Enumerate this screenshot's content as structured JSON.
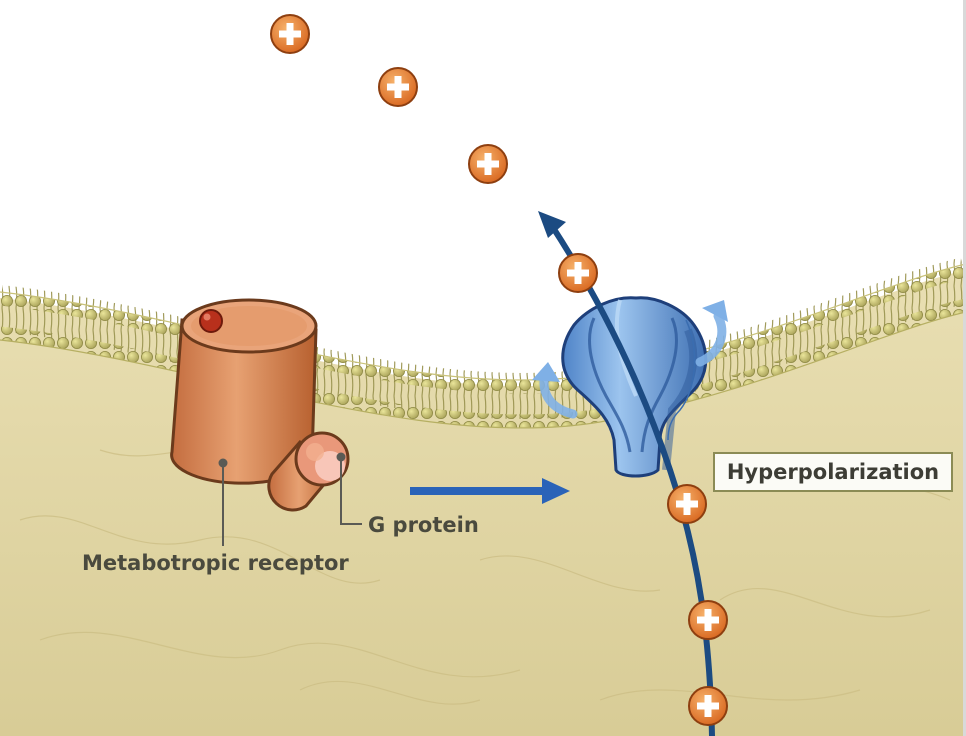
{
  "labels": {
    "receptor": "Metabotropic receptor",
    "g_protein": "G protein",
    "hyperpolarization": "Hyperpolarization"
  },
  "icons": {
    "ion": "positive-ion-icon",
    "flow_arrow": "arrow-right-icon",
    "ion_path": "curved-arrow-icon",
    "channel": "ion-channel-icon"
  },
  "colors": {
    "cytoplasm": "#e2d7a7",
    "membrane": "#c2bd72",
    "receptor": "#de8c5a",
    "channel": "#6a9fd8",
    "ion": "#e07a2a",
    "arrow": "#2a63b8",
    "ion_path": "#1c4b82"
  }
}
